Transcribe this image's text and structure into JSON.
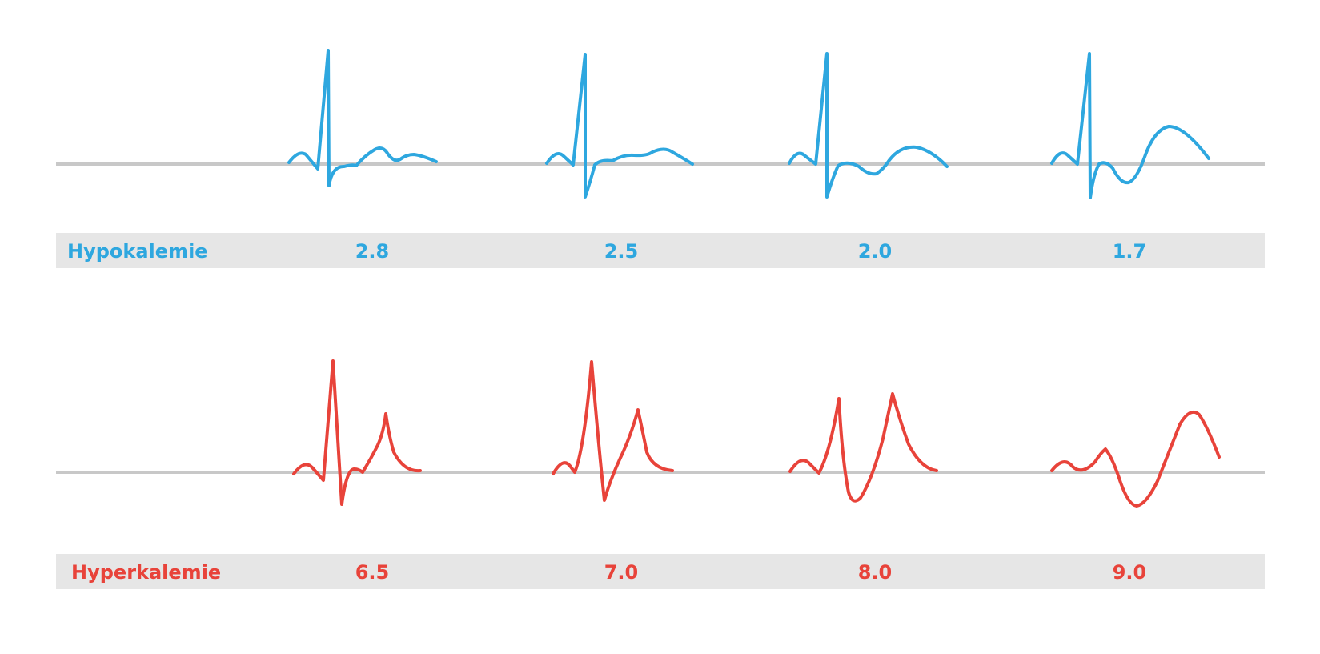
{
  "rows": [
    {
      "id": "hypokalemie",
      "label": "Hypokalemie",
      "color": "#2ea7df",
      "values": [
        "2.8",
        "2.5",
        "2.0",
        "1.7"
      ]
    },
    {
      "id": "hyperkalemie",
      "label": "Hyperkalemie",
      "color": "#e8433a",
      "values": [
        "6.5",
        "7.0",
        "8.0",
        "9.0"
      ]
    }
  ]
}
